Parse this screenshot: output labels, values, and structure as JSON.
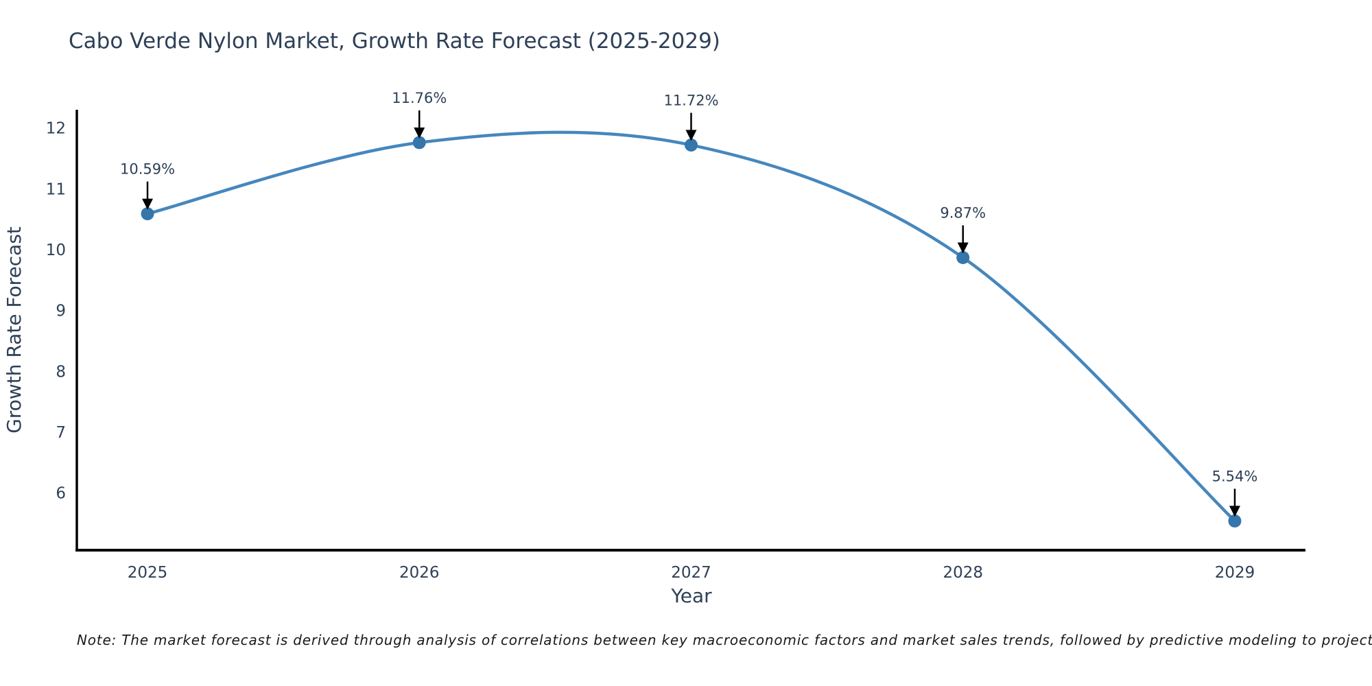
{
  "page": {
    "background": "#ffffff"
  },
  "chart_data": {
    "type": "line",
    "title": "Cabo Verde Nylon Market, Growth Rate Forecast (2025-2029)",
    "xlabel": "Year",
    "ylabel": "Growth Rate Forecast",
    "x": [
      2025,
      2026,
      2027,
      2028,
      2029
    ],
    "values": [
      10.59,
      11.76,
      11.72,
      9.87,
      5.54
    ],
    "point_labels": [
      "10.59%",
      "11.76%",
      "11.72%",
      "9.87%",
      "5.54%"
    ],
    "xtick_labels": [
      "2025",
      "2026",
      "2027",
      "2028",
      "2029"
    ],
    "xtick_values": [
      2025,
      2026,
      2027,
      2028,
      2029
    ],
    "ytick_labels": [
      "6",
      "7",
      "8",
      "9",
      "10",
      "11",
      "12"
    ],
    "ytick_values": [
      6,
      7,
      8,
      9,
      10,
      11,
      12
    ],
    "xlim": [
      2024.74,
      2029.26
    ],
    "ylim": [
      5.06,
      12.3
    ],
    "grid": false,
    "legend_position": "none",
    "line_shape": "spline",
    "colors": {
      "line": "#4687bd",
      "marker": "#3576ab",
      "axis_line": "#000000",
      "text": "#2e4057",
      "annotation_arrow": "#000000",
      "footnote_text": "#1a1a1a"
    }
  },
  "footnote": {
    "text": "Note: The market forecast is derived through analysis of correlations between key macroeconomic factors and market sales trends, followed by predictive modeling to project future sales"
  }
}
